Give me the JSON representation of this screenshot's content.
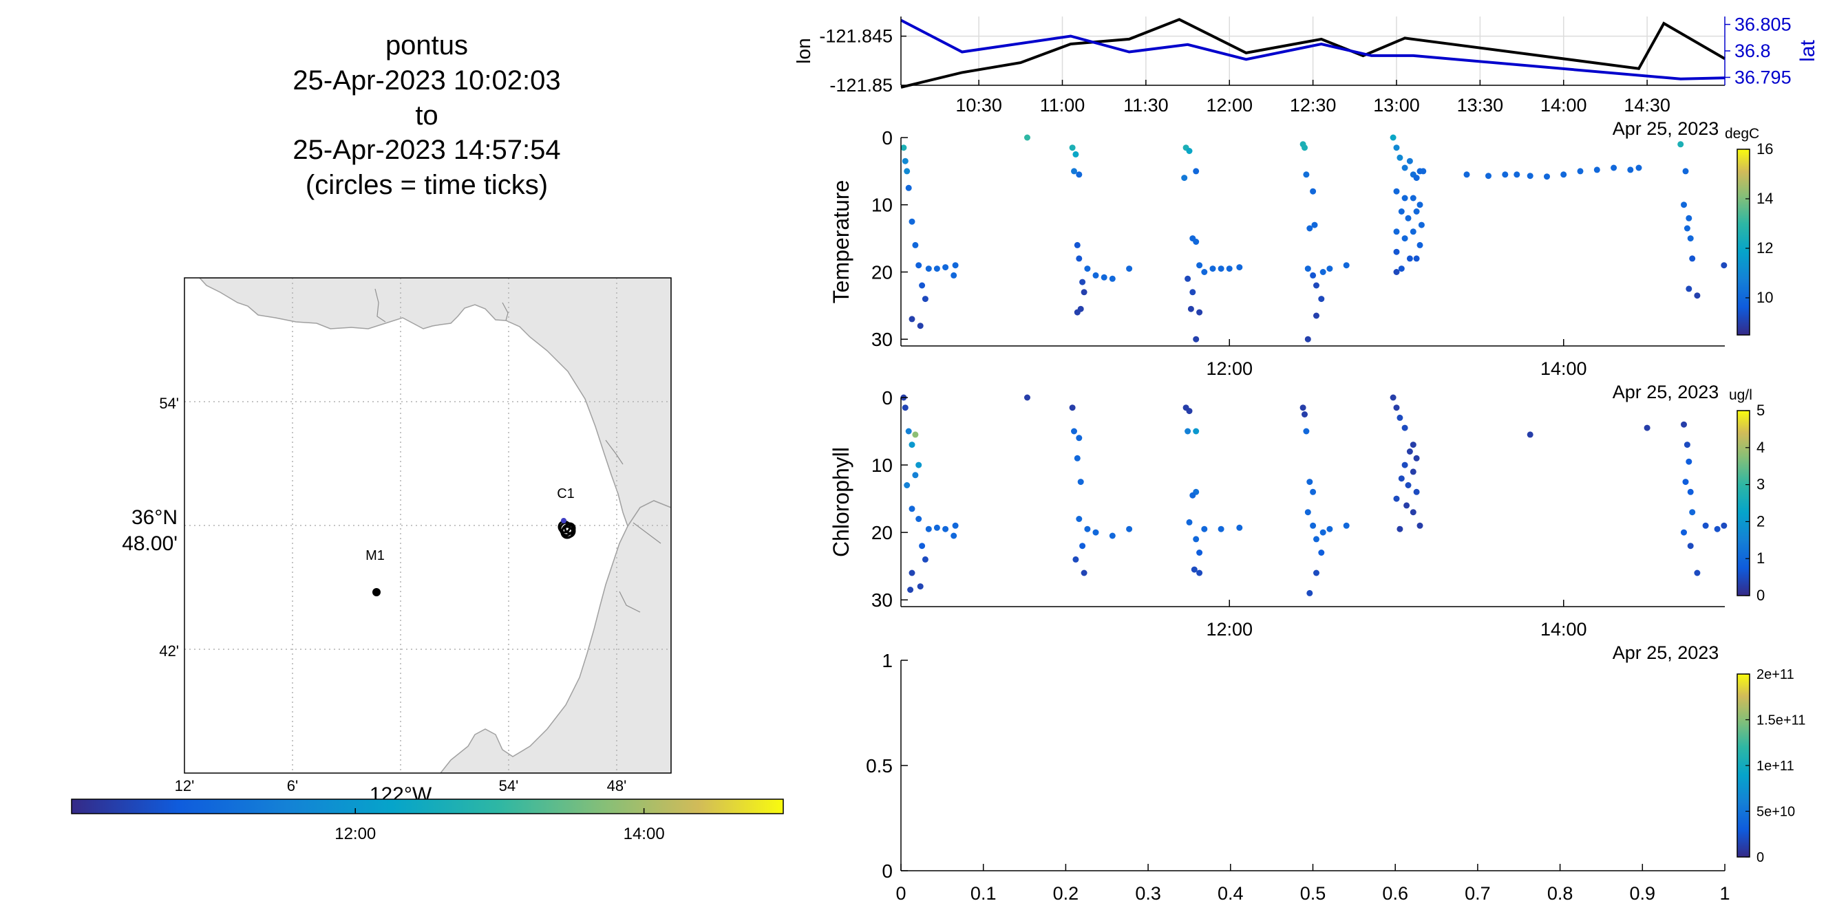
{
  "title": {
    "lines": [
      "pontus",
      "25-Apr-2023 10:02:03",
      "to",
      "25-Apr-2023 14:57:54",
      "(circles = time ticks)"
    ]
  },
  "map": {
    "lat_ticks": [
      "54'",
      "36°N",
      "48.00'",
      "42'"
    ],
    "lon_ticks": [
      "12'",
      "6'",
      "122°W",
      "54'",
      "48'"
    ],
    "stations": [
      {
        "name": "M1",
        "lon": -122.04,
        "lat": 36.75
      },
      {
        "name": "C1",
        "lon": -121.845,
        "lat": 36.8
      }
    ],
    "colors": {
      "land": "#e6e6e6",
      "coast": "#a0a0a0",
      "grid": "#b0b0b0"
    }
  },
  "time_colorbar": {
    "ticks": [
      {
        "label": "12:00",
        "t": 12.0
      },
      {
        "label": "14:00",
        "t": 14.0
      }
    ],
    "t_range": [
      10.034,
      14.965
    ]
  },
  "chart_data": [
    {
      "type": "line",
      "x_unit": "hour of 25-Apr-2023",
      "x_ticks": [
        "10:30",
        "11:00",
        "11:30",
        "12:00",
        "12:30",
        "13:00",
        "13:30",
        "14:00",
        "14:30"
      ],
      "x_tick_values": [
        10.5,
        11.0,
        11.5,
        12.0,
        12.5,
        13.0,
        13.5,
        14.0,
        14.5
      ],
      "x_date_label": "Apr 25, 2023",
      "xlim": [
        10.034,
        14.965
      ],
      "ylabel": "lon",
      "ylim": [
        -121.85,
        -121.843
      ],
      "y_ticks": [
        "-121.845",
        "-121.85"
      ],
      "ylabel_right": "lat",
      "ylim_right": [
        36.7935,
        36.8065
      ],
      "y_ticks_right": [
        "36.805",
        "36.8",
        "36.795"
      ],
      "grid": true,
      "series": [
        {
          "color": "#000000",
          "axis": "left",
          "x": [
            10.034,
            10.4,
            10.75,
            11.05,
            11.4,
            11.7,
            12.1,
            12.55,
            12.8,
            13.05,
            14.45,
            14.6,
            14.965
          ],
          "y": [
            -121.8502,
            -121.8487,
            -121.8477,
            -121.8458,
            -121.8453,
            -121.8433,
            -121.8467,
            -121.8453,
            -121.847,
            -121.8452,
            -121.8483,
            -121.8437,
            -121.8473
          ]
        },
        {
          "color": "#0000cc",
          "axis": "right",
          "x": [
            10.034,
            10.4,
            11.05,
            11.4,
            11.75,
            12.1,
            12.55,
            12.85,
            13.1,
            14.7,
            14.965
          ],
          "y": [
            36.8058,
            36.7998,
            36.8028,
            36.7998,
            36.8012,
            36.7984,
            36.8013,
            36.7991,
            36.7991,
            36.7947,
            36.7949
          ]
        }
      ]
    },
    {
      "type": "scatter",
      "ylabel": "Temperature",
      "colorbar_unit": "degC",
      "clim": [
        8.5,
        16
      ],
      "colorbar_ticks": [
        "16",
        "14",
        "12",
        "10"
      ],
      "colorbar_tick_values": [
        16,
        14,
        12,
        10
      ],
      "xlim": [
        10.034,
        14.965
      ],
      "x_ticks": [
        "12:00",
        "14:00"
      ],
      "x_tick_values": [
        12.0,
        14.0
      ],
      "x_date_label": "Apr 25, 2023",
      "ylim": [
        0,
        31
      ],
      "y_reversed": true,
      "y_ticks": [
        "0",
        "10",
        "20",
        "30"
      ],
      "y_tick_values": [
        0,
        10,
        20,
        30
      ],
      "points": [
        [
          10.05,
          1.5,
          12.5
        ],
        [
          10.06,
          3.5,
          11
        ],
        [
          10.08,
          7.5,
          10
        ],
        [
          10.1,
          12.5,
          10
        ],
        [
          10.12,
          16,
          10
        ],
        [
          10.14,
          19,
          9.8
        ],
        [
          10.16,
          22,
          9.5
        ],
        [
          10.18,
          24,
          9.2
        ],
        [
          10.1,
          27,
          9
        ],
        [
          10.15,
          28,
          9
        ],
        [
          10.2,
          19.5,
          10
        ],
        [
          10.25,
          19.5,
          10
        ],
        [
          10.3,
          19.3,
          10
        ],
        [
          10.35,
          20.5,
          10
        ],
        [
          10.36,
          19,
          10
        ],
        [
          10.07,
          5,
          11
        ],
        [
          10.79,
          0,
          13
        ],
        [
          11.06,
          1.5,
          12.5
        ],
        [
          11.08,
          2.5,
          12
        ],
        [
          11.07,
          5,
          10.5
        ],
        [
          11.1,
          5.5,
          10
        ],
        [
          11.09,
          16,
          9.5
        ],
        [
          11.1,
          18,
          9.5
        ],
        [
          11.12,
          21.5,
          9.2
        ],
        [
          11.13,
          23,
          9
        ],
        [
          11.11,
          25.5,
          9
        ],
        [
          11.09,
          26,
          9
        ],
        [
          11.15,
          19.5,
          10
        ],
        [
          11.2,
          20.5,
          10
        ],
        [
          11.25,
          20.8,
          10
        ],
        [
          11.3,
          21,
          10
        ],
        [
          11.4,
          19.5,
          10
        ],
        [
          11.74,
          1.5,
          12.5
        ],
        [
          11.76,
          2,
          12
        ],
        [
          11.73,
          6,
          10.5
        ],
        [
          11.8,
          5,
          10
        ],
        [
          11.78,
          15,
          10
        ],
        [
          11.8,
          15.5,
          10
        ],
        [
          11.75,
          21,
          9.2
        ],
        [
          11.78,
          23,
          9.2
        ],
        [
          11.77,
          25.5,
          9
        ],
        [
          11.82,
          26,
          9
        ],
        [
          11.8,
          30,
          9
        ],
        [
          11.85,
          20,
          10
        ],
        [
          11.9,
          19.5,
          10
        ],
        [
          11.95,
          19.5,
          10
        ],
        [
          12.0,
          19.5,
          10
        ],
        [
          12.06,
          19.3,
          10
        ],
        [
          11.82,
          19,
          10
        ],
        [
          12.44,
          1,
          12.5
        ],
        [
          12.45,
          1.5,
          12.5
        ],
        [
          12.46,
          5.5,
          10.2
        ],
        [
          12.5,
          8,
          10
        ],
        [
          12.48,
          13.5,
          10
        ],
        [
          12.51,
          13,
          10
        ],
        [
          12.47,
          19.5,
          10
        ],
        [
          12.5,
          20.5,
          9.5
        ],
        [
          12.52,
          22,
          9.2
        ],
        [
          12.55,
          24,
          9.2
        ],
        [
          12.52,
          26.5,
          9
        ],
        [
          12.47,
          30,
          9
        ],
        [
          12.56,
          20,
          10
        ],
        [
          12.6,
          19.5,
          10
        ],
        [
          12.7,
          19,
          10
        ],
        [
          12.98,
          0,
          12
        ],
        [
          13.0,
          1.5,
          11
        ],
        [
          13.02,
          3,
          11
        ],
        [
          13.05,
          4.5,
          10.5
        ],
        [
          13.08,
          3.5,
          10.5
        ],
        [
          13.1,
          5.5,
          10.2
        ],
        [
          13.12,
          6,
          10
        ],
        [
          13.14,
          5,
          10
        ],
        [
          13.16,
          5,
          10
        ],
        [
          13.0,
          8,
          10
        ],
        [
          13.05,
          9,
          10
        ],
        [
          13.1,
          9,
          10
        ],
        [
          13.03,
          11,
          10
        ],
        [
          13.07,
          12,
          10
        ],
        [
          13.12,
          11,
          10
        ],
        [
          13.0,
          14,
          10
        ],
        [
          13.05,
          15,
          10
        ],
        [
          13.1,
          14,
          10
        ],
        [
          13.14,
          16,
          9.8
        ],
        [
          13.0,
          17,
          9.5
        ],
        [
          13.08,
          18,
          9.5
        ],
        [
          13.12,
          18,
          9.5
        ],
        [
          13.03,
          19.5,
          9.5
        ],
        [
          13.0,
          20,
          9.2
        ],
        [
          13.15,
          13,
          10
        ],
        [
          13.14,
          10,
          10
        ],
        [
          13.42,
          5.5,
          10
        ],
        [
          13.55,
          5.7,
          10
        ],
        [
          13.65,
          5.5,
          10
        ],
        [
          13.72,
          5.5,
          10
        ],
        [
          13.8,
          5.7,
          10
        ],
        [
          13.9,
          5.8,
          10
        ],
        [
          14.0,
          5.5,
          10
        ],
        [
          14.1,
          5,
          10
        ],
        [
          14.2,
          4.8,
          10
        ],
        [
          14.3,
          4.5,
          10
        ],
        [
          14.4,
          4.8,
          10
        ],
        [
          14.45,
          4.5,
          10
        ],
        [
          14.7,
          1,
          12.5
        ],
        [
          14.73,
          5,
          10
        ],
        [
          14.72,
          10,
          10
        ],
        [
          14.75,
          12,
          10
        ],
        [
          14.74,
          13.5,
          10
        ],
        [
          14.76,
          15,
          10
        ],
        [
          14.77,
          18,
          9.5
        ],
        [
          14.75,
          22.5,
          9.2
        ],
        [
          14.8,
          23.5,
          9
        ],
        [
          14.96,
          19,
          9.2
        ]
      ]
    },
    {
      "type": "scatter",
      "ylabel": "Chlorophyll",
      "colorbar_unit": "ug/l",
      "clim": [
        0,
        5
      ],
      "colorbar_ticks": [
        "5",
        "4",
        "3",
        "2",
        "1",
        "0"
      ],
      "colorbar_tick_values": [
        5,
        4,
        3,
        2,
        1,
        0
      ],
      "xlim": [
        10.034,
        14.965
      ],
      "x_ticks": [
        "12:00",
        "14:00"
      ],
      "x_tick_values": [
        12.0,
        14.0
      ],
      "x_date_label": "Apr 25, 2023",
      "ylim": [
        0,
        31
      ],
      "y_reversed": true,
      "y_ticks": [
        "0",
        "10",
        "20",
        "30"
      ],
      "y_tick_values": [
        0,
        10,
        20,
        30
      ],
      "points": [
        [
          10.05,
          0,
          0.3
        ],
        [
          10.06,
          1.5,
          0.4
        ],
        [
          10.08,
          5,
          1.5
        ],
        [
          10.12,
          5.5,
          3.8
        ],
        [
          10.1,
          7,
          2
        ],
        [
          10.14,
          10,
          2
        ],
        [
          10.12,
          11.5,
          1.5
        ],
        [
          10.07,
          13,
          1.5
        ],
        [
          10.1,
          16.5,
          1
        ],
        [
          10.14,
          18,
          1
        ],
        [
          10.16,
          22,
          0.8
        ],
        [
          10.18,
          24,
          0.5
        ],
        [
          10.1,
          26,
          0.4
        ],
        [
          10.15,
          28,
          0.4
        ],
        [
          10.09,
          28.5,
          0.4
        ],
        [
          10.2,
          19.5,
          1
        ],
        [
          10.25,
          19.3,
          1
        ],
        [
          10.3,
          19.5,
          1
        ],
        [
          10.35,
          20.5,
          1
        ],
        [
          10.36,
          19,
          1
        ],
        [
          10.79,
          0,
          0.3
        ],
        [
          11.06,
          1.5,
          0.3
        ],
        [
          11.07,
          5,
          1
        ],
        [
          11.1,
          6,
          1
        ],
        [
          11.09,
          9,
          1
        ],
        [
          11.11,
          12.5,
          1
        ],
        [
          11.1,
          18,
          1
        ],
        [
          11.12,
          22,
          0.8
        ],
        [
          11.08,
          24,
          0.5
        ],
        [
          11.13,
          26,
          0.4
        ],
        [
          11.15,
          19.5,
          1
        ],
        [
          11.2,
          20,
          1
        ],
        [
          11.3,
          20.5,
          1
        ],
        [
          11.4,
          19.5,
          1
        ],
        [
          11.74,
          1.5,
          0.3
        ],
        [
          11.76,
          2,
          0.3
        ],
        [
          11.75,
          5,
          1.5
        ],
        [
          11.8,
          5,
          2
        ],
        [
          11.8,
          14,
          1.2
        ],
        [
          11.78,
          14.5,
          1
        ],
        [
          11.76,
          18.5,
          1
        ],
        [
          11.8,
          21,
          1
        ],
        [
          11.82,
          23,
          0.8
        ],
        [
          11.79,
          25.5,
          0.5
        ],
        [
          11.82,
          26,
          0.5
        ],
        [
          11.85,
          19.5,
          1
        ],
        [
          11.95,
          19.5,
          1
        ],
        [
          12.06,
          19.3,
          1
        ],
        [
          12.44,
          1.5,
          0.3
        ],
        [
          12.45,
          2.5,
          0.3
        ],
        [
          12.46,
          5,
          1
        ],
        [
          12.48,
          12.5,
          1
        ],
        [
          12.5,
          14,
          1
        ],
        [
          12.47,
          17,
          1
        ],
        [
          12.5,
          19,
          1
        ],
        [
          12.52,
          21,
          1
        ],
        [
          12.55,
          23,
          0.8
        ],
        [
          12.52,
          26,
          0.5
        ],
        [
          12.48,
          29,
          0.5
        ],
        [
          12.56,
          20,
          1
        ],
        [
          12.6,
          19.5,
          1
        ],
        [
          12.7,
          19,
          1
        ],
        [
          12.98,
          0,
          0.3
        ],
        [
          13.0,
          1.5,
          0.3
        ],
        [
          13.02,
          3,
          0.5
        ],
        [
          13.05,
          4.5,
          0.5
        ],
        [
          13.1,
          7,
          0.3
        ],
        [
          13.08,
          8,
          0.3
        ],
        [
          13.12,
          9,
          0.3
        ],
        [
          13.05,
          10,
          0.5
        ],
        [
          13.1,
          11,
          0.3
        ],
        [
          13.03,
          12,
          0.5
        ],
        [
          13.07,
          13,
          0.5
        ],
        [
          13.12,
          14,
          0.5
        ],
        [
          13.0,
          15,
          0.5
        ],
        [
          13.06,
          16,
          0.3
        ],
        [
          13.1,
          17,
          0.3
        ],
        [
          13.02,
          19.5,
          0.3
        ],
        [
          13.14,
          19,
          0.3
        ],
        [
          13.8,
          5.5,
          0.3
        ],
        [
          14.5,
          4.5,
          0.3
        ],
        [
          14.72,
          4,
          0.3
        ],
        [
          14.74,
          7,
          0.5
        ],
        [
          14.75,
          9.5,
          0.8
        ],
        [
          14.73,
          12.5,
          0.8
        ],
        [
          14.76,
          14,
          0.8
        ],
        [
          14.77,
          17,
          1
        ],
        [
          14.72,
          20,
          0.8
        ],
        [
          14.76,
          22,
          0.5
        ],
        [
          14.8,
          26,
          0.5
        ],
        [
          14.85,
          19,
          0.6
        ],
        [
          14.92,
          19.5,
          0.6
        ],
        [
          14.96,
          19,
          0.5
        ]
      ]
    },
    {
      "type": "scatter",
      "xlim": [
        0,
        1
      ],
      "ylim": [
        0,
        1
      ],
      "x_ticks": [
        "0",
        "0.1",
        "0.2",
        "0.3",
        "0.4",
        "0.5",
        "0.6",
        "0.7",
        "0.8",
        "0.9",
        "1"
      ],
      "x_tick_values": [
        0,
        0.1,
        0.2,
        0.3,
        0.4,
        0.5,
        0.6,
        0.7,
        0.8,
        0.9,
        1
      ],
      "y_ticks": [
        "1",
        "0.5",
        "0"
      ],
      "y_tick_values": [
        1,
        0.5,
        0
      ],
      "clim": [
        0,
        200000000000.0
      ],
      "colorbar_ticks": [
        "2e+11",
        "1.5e+11",
        "1e+11",
        "5e+10",
        "0"
      ],
      "colorbar_tick_values": [
        200000000000.0,
        150000000000.0,
        100000000000.0,
        50000000000.0,
        0
      ],
      "points": []
    }
  ]
}
